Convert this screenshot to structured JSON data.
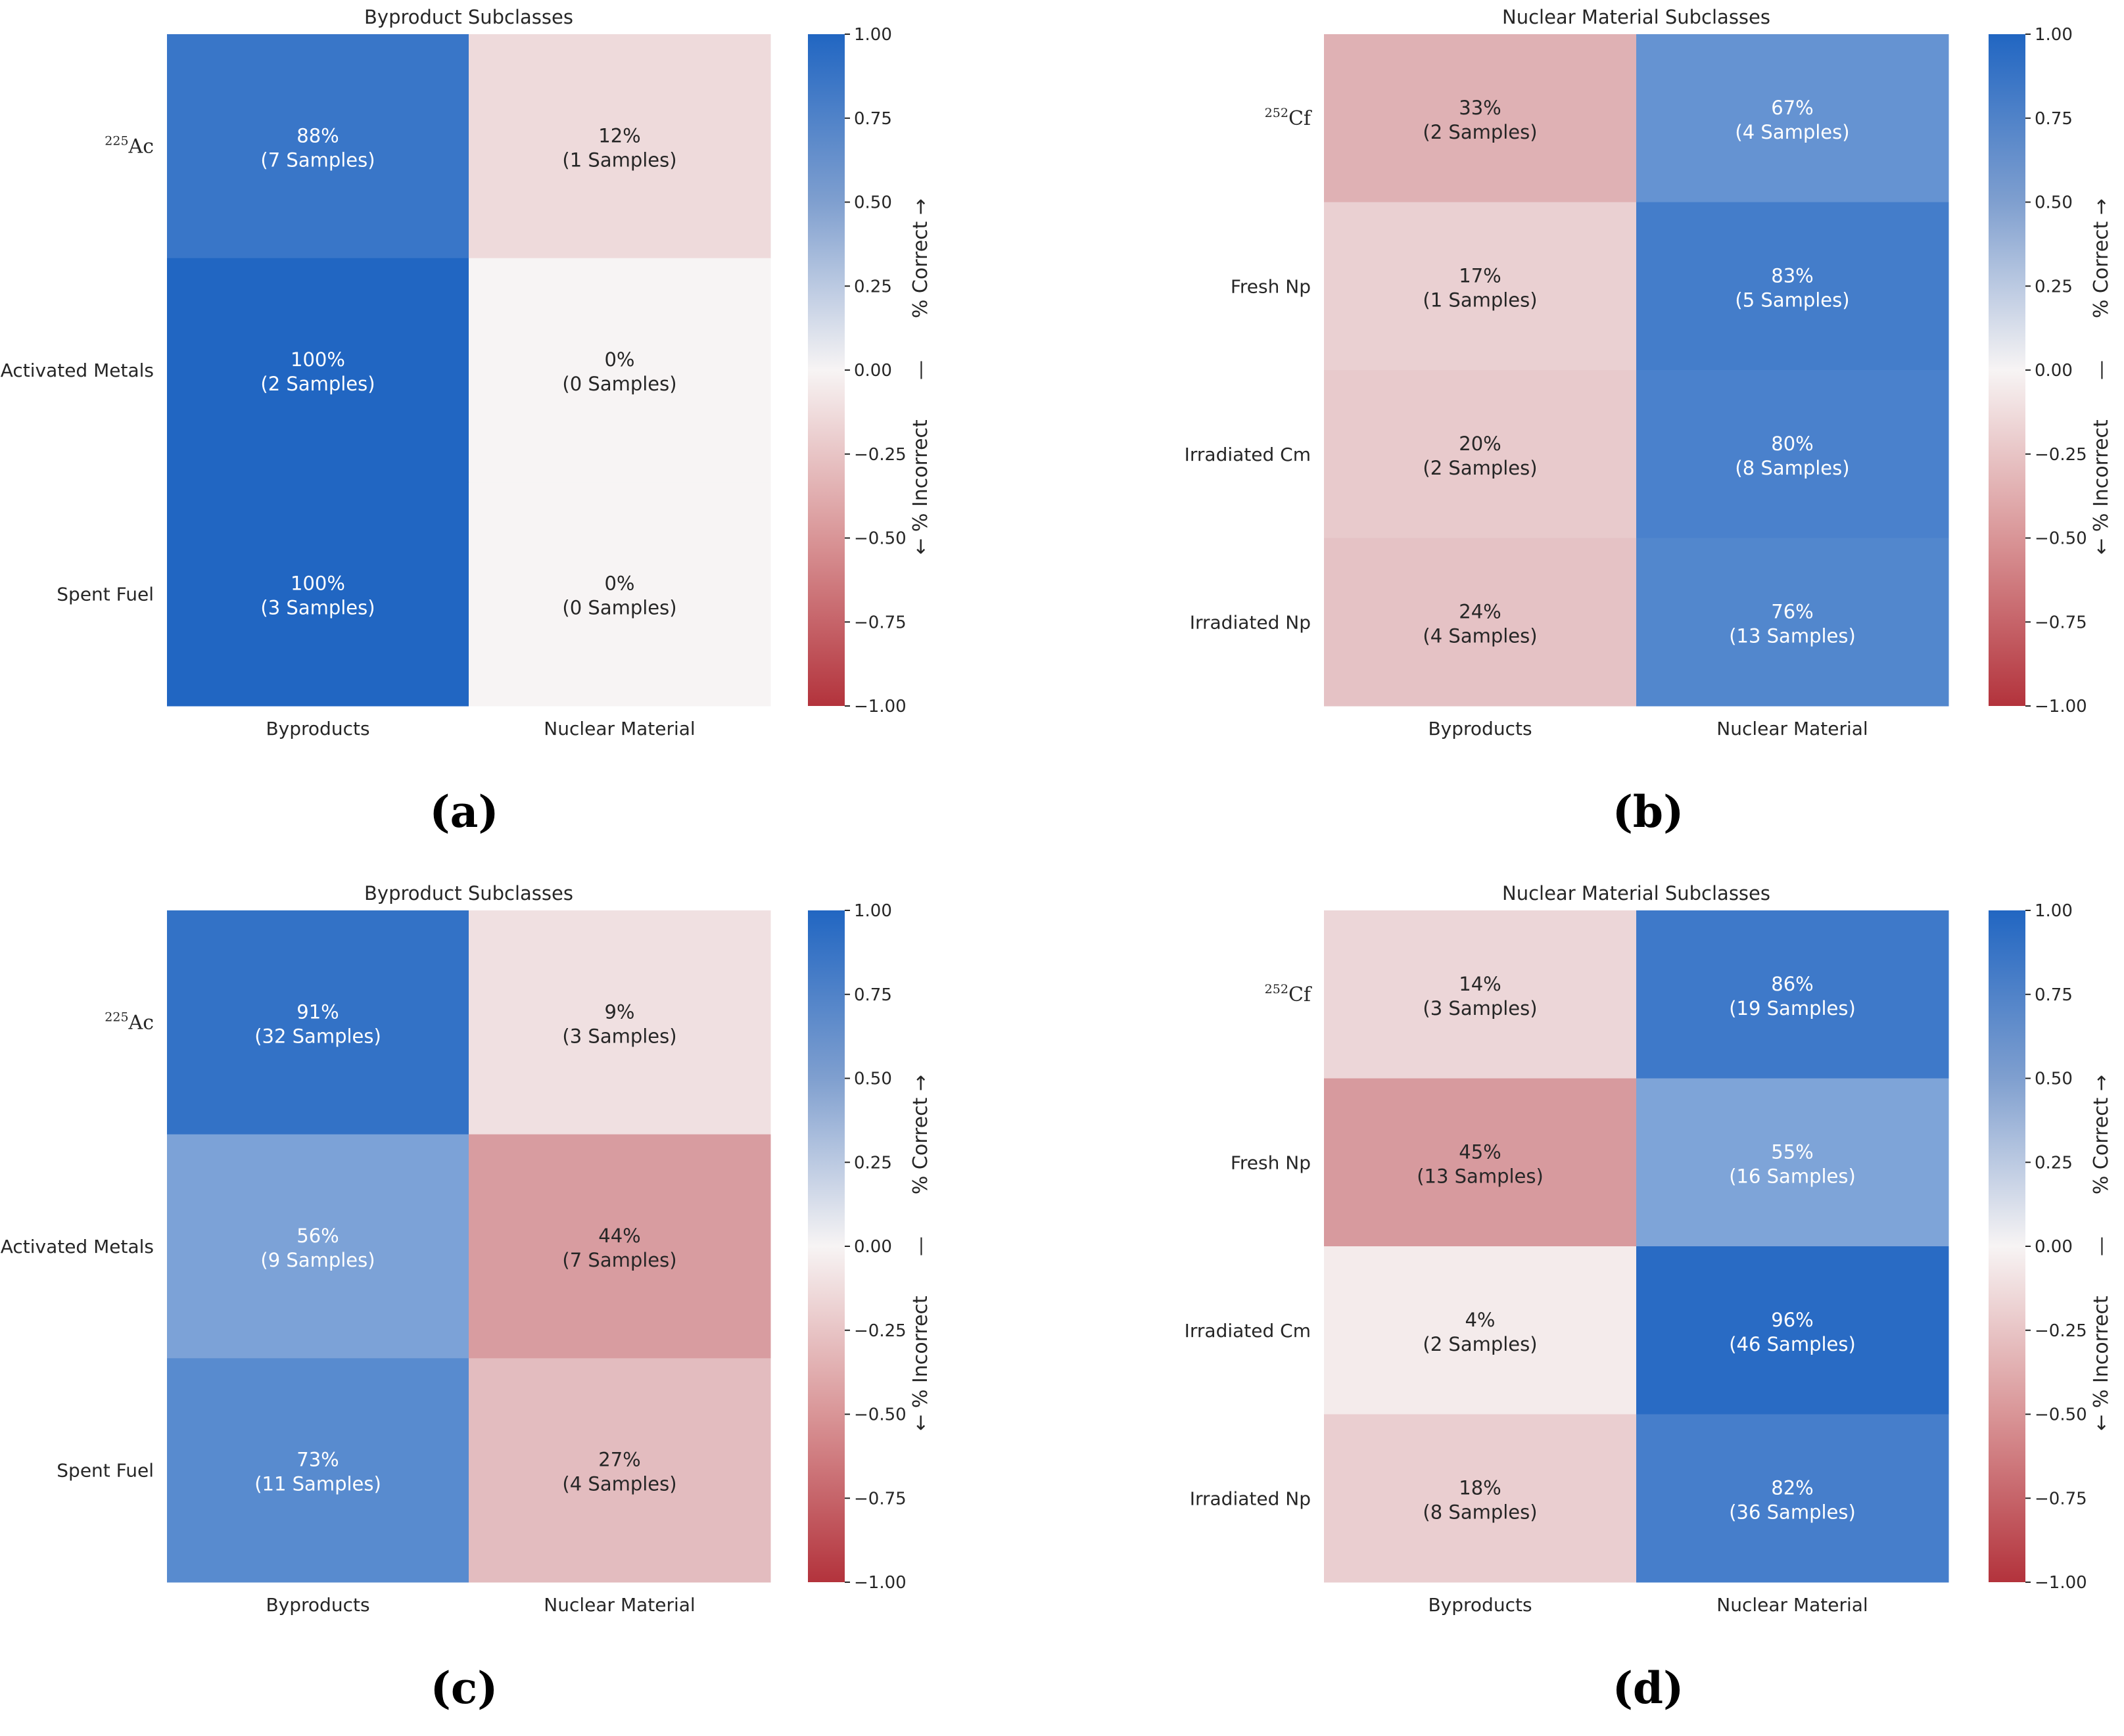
{
  "colors": {
    "negative": "#b3333c",
    "neutral": "#f7f4f4",
    "positive": "#2166c2",
    "text_dark": "#262626",
    "text_light": "#ffffff"
  },
  "chart_data": [
    {
      "type": "heatmap",
      "panel_label": "(a)",
      "title": "Byproduct Subclasses",
      "columns": [
        "Byproducts",
        "Nuclear Material"
      ],
      "rows": [
        {
          "label": "Ac",
          "superscript": "225"
        },
        {
          "label": "Activated Metals",
          "superscript": ""
        },
        {
          "label": "Spent Fuel",
          "superscript": ""
        }
      ],
      "correct_column": 0,
      "percent": [
        [
          88,
          12
        ],
        [
          100,
          0
        ],
        [
          100,
          0
        ]
      ],
      "samples": [
        [
          7,
          1
        ],
        [
          2,
          0
        ],
        [
          3,
          0
        ]
      ],
      "percent_labels": [
        [
          "88%",
          "12%"
        ],
        [
          "100%",
          "0%"
        ],
        [
          "100%",
          "0%"
        ]
      ],
      "sample_labels": [
        [
          "(7 Samples)",
          "(1 Samples)"
        ],
        [
          "(2 Samples)",
          "(0 Samples)"
        ],
        [
          "(3 Samples)",
          "(0 Samples)"
        ]
      ],
      "colorbar": {
        "range": [
          -1,
          1
        ],
        "ticks": [
          "1.00",
          "0.75",
          "0.50",
          "0.25",
          "0.00",
          "−0.25",
          "−0.50",
          "−0.75",
          "−1.00"
        ],
        "label_top": "% Correct →",
        "label_mid": "—",
        "label_bottom": "← % Incorrect"
      }
    },
    {
      "type": "heatmap",
      "panel_label": "(b)",
      "title": "Nuclear Material Subclasses",
      "columns": [
        "Byproducts",
        "Nuclear Material"
      ],
      "rows": [
        {
          "label": "Cf",
          "superscript": "252"
        },
        {
          "label": "Fresh Np",
          "superscript": ""
        },
        {
          "label": "Irradiated Cm",
          "superscript": ""
        },
        {
          "label": "Irradiated Np",
          "superscript": ""
        }
      ],
      "correct_column": 1,
      "percent": [
        [
          33,
          67
        ],
        [
          17,
          83
        ],
        [
          20,
          80
        ],
        [
          24,
          76
        ]
      ],
      "samples": [
        [
          2,
          4
        ],
        [
          1,
          5
        ],
        [
          2,
          8
        ],
        [
          4,
          13
        ]
      ],
      "percent_labels": [
        [
          "33%",
          "67%"
        ],
        [
          "17%",
          "83%"
        ],
        [
          "20%",
          "80%"
        ],
        [
          "24%",
          "76%"
        ]
      ],
      "sample_labels": [
        [
          "(2 Samples)",
          "(4 Samples)"
        ],
        [
          "(1 Samples)",
          "(5 Samples)"
        ],
        [
          "(2 Samples)",
          "(8 Samples)"
        ],
        [
          "(4 Samples)",
          "(13 Samples)"
        ]
      ],
      "colorbar": {
        "range": [
          -1,
          1
        ],
        "ticks": [
          "1.00",
          "0.75",
          "0.50",
          "0.25",
          "0.00",
          "−0.25",
          "−0.50",
          "−0.75",
          "−1.00"
        ],
        "label_top": "% Correct →",
        "label_mid": "—",
        "label_bottom": "← % Incorrect"
      }
    },
    {
      "type": "heatmap",
      "panel_label": "(c)",
      "title": "Byproduct Subclasses",
      "columns": [
        "Byproducts",
        "Nuclear Material"
      ],
      "rows": [
        {
          "label": "Ac",
          "superscript": "225"
        },
        {
          "label": "Activated Metals",
          "superscript": ""
        },
        {
          "label": "Spent Fuel",
          "superscript": ""
        }
      ],
      "correct_column": 0,
      "percent": [
        [
          91,
          9
        ],
        [
          56,
          44
        ],
        [
          73,
          27
        ]
      ],
      "samples": [
        [
          32,
          3
        ],
        [
          9,
          7
        ],
        [
          11,
          4
        ]
      ],
      "percent_labels": [
        [
          "91%",
          "9%"
        ],
        [
          "56%",
          "44%"
        ],
        [
          "73%",
          "27%"
        ]
      ],
      "sample_labels": [
        [
          "(32 Samples)",
          "(3 Samples)"
        ],
        [
          "(9 Samples)",
          "(7 Samples)"
        ],
        [
          "(11 Samples)",
          "(4 Samples)"
        ]
      ],
      "colorbar": {
        "range": [
          -1,
          1
        ],
        "ticks": [
          "1.00",
          "0.75",
          "0.50",
          "0.25",
          "0.00",
          "−0.25",
          "−0.50",
          "−0.75",
          "−1.00"
        ],
        "label_top": "% Correct →",
        "label_mid": "—",
        "label_bottom": "← % Incorrect"
      }
    },
    {
      "type": "heatmap",
      "panel_label": "(d)",
      "title": "Nuclear Material Subclasses",
      "columns": [
        "Byproducts",
        "Nuclear Material"
      ],
      "rows": [
        {
          "label": "Cf",
          "superscript": "252"
        },
        {
          "label": "Fresh Np",
          "superscript": ""
        },
        {
          "label": "Irradiated Cm",
          "superscript": ""
        },
        {
          "label": "Irradiated Np",
          "superscript": ""
        }
      ],
      "correct_column": 1,
      "percent": [
        [
          14,
          86
        ],
        [
          45,
          55
        ],
        [
          4,
          96
        ],
        [
          18,
          82
        ]
      ],
      "samples": [
        [
          3,
          19
        ],
        [
          13,
          16
        ],
        [
          2,
          46
        ],
        [
          8,
          36
        ]
      ],
      "percent_labels": [
        [
          "14%",
          "86%"
        ],
        [
          "45%",
          "55%"
        ],
        [
          "4%",
          "96%"
        ],
        [
          "18%",
          "82%"
        ]
      ],
      "sample_labels": [
        [
          "(3 Samples)",
          "(19 Samples)"
        ],
        [
          "(13 Samples)",
          "(16 Samples)"
        ],
        [
          "(2 Samples)",
          "(46 Samples)"
        ],
        [
          "(8 Samples)",
          "(36 Samples)"
        ]
      ],
      "colorbar": {
        "range": [
          -1,
          1
        ],
        "ticks": [
          "1.00",
          "0.75",
          "0.50",
          "0.25",
          "0.00",
          "−0.25",
          "−0.50",
          "−0.75",
          "−1.00"
        ],
        "label_top": "% Correct →",
        "label_mid": "—",
        "label_bottom": "← % Incorrect"
      }
    }
  ]
}
